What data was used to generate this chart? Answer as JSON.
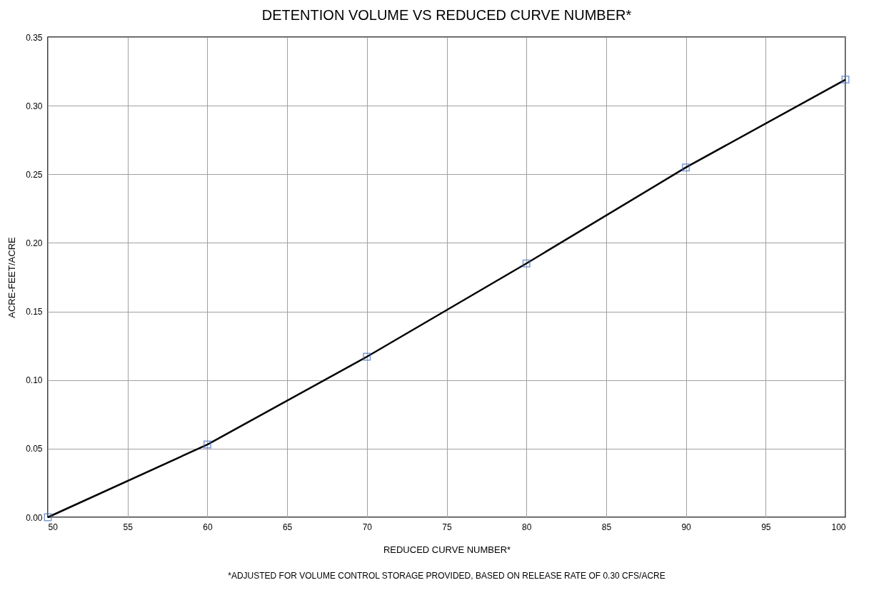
{
  "chart_data": {
    "type": "line",
    "title": "DETENTION VOLUME VS REDUCED CURVE NUMBER*",
    "xlabel": "REDUCED CURVE NUMBER*",
    "ylabel": "ACRE-FEET/ACRE",
    "x": [
      50,
      60,
      70,
      80,
      90,
      100
    ],
    "series": [
      {
        "color": "#000000",
        "colors": [
          "#4472c4",
          "#4472c4",
          "#4472c4",
          "#4472c4",
          "#4472c4",
          "#4472c4"
        ],
        "values": [
          0.0,
          0.053,
          0.117,
          0.185,
          0.255,
          0.319
        ]
      }
    ],
    "xlim": [
      50,
      100
    ],
    "xticks": [
      50,
      55,
      60,
      65,
      70,
      75,
      80,
      85,
      90,
      95,
      100
    ],
    "ylim": [
      0,
      0.35
    ],
    "yticks": [
      {
        "value": 0,
        "label": "0.00"
      },
      {
        "value": 0.05,
        "label": "0.05"
      },
      {
        "value": 0.1,
        "label": "0.10"
      },
      {
        "value": 0.15,
        "label": "0.15"
      },
      {
        "value": 0.2,
        "label": "0.20"
      },
      {
        "value": 0.25,
        "label": "0.25"
      },
      {
        "value": 0.3,
        "label": "0.30"
      },
      {
        "value": 0.35,
        "label": "0.35"
      }
    ],
    "grid": true,
    "marker": "square",
    "line_style": "solid",
    "annotations": [
      "*ADJUSTED FOR VOLUME CONTROL STORAGE PROVIDED, BASED ON RELEASE RATE OF 0.30 CFS/ACRE"
    ]
  }
}
